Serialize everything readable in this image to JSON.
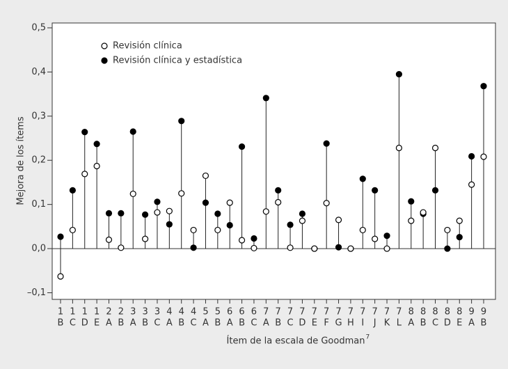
{
  "chart_data": {
    "type": "lollipop",
    "ylabel": "Mejora de los ítems",
    "xlabel": "Ítem de la escala de Goodman",
    "xlabel_superscript": "7",
    "categories": [
      [
        "1",
        "B"
      ],
      [
        "1",
        "C"
      ],
      [
        "1",
        "D"
      ],
      [
        "1",
        "E"
      ],
      [
        "2",
        "A"
      ],
      [
        "2",
        "B"
      ],
      [
        "3",
        "A"
      ],
      [
        "3",
        "B"
      ],
      [
        "3",
        "C"
      ],
      [
        "4",
        "A"
      ],
      [
        "4",
        "B"
      ],
      [
        "4",
        "C"
      ],
      [
        "5",
        "A"
      ],
      [
        "5",
        "B"
      ],
      [
        "6",
        "A"
      ],
      [
        "6",
        "B"
      ],
      [
        "6",
        "C"
      ],
      [
        "7",
        "A"
      ],
      [
        "7",
        "B"
      ],
      [
        "7",
        "C"
      ],
      [
        "7",
        "D"
      ],
      [
        "7",
        "E"
      ],
      [
        "7",
        "F"
      ],
      [
        "7",
        "G"
      ],
      [
        "7",
        "H"
      ],
      [
        "7",
        "I"
      ],
      [
        "7",
        "J"
      ],
      [
        "7",
        "K"
      ],
      [
        "7",
        "L"
      ],
      [
        "8",
        "A"
      ],
      [
        "8",
        "B"
      ],
      [
        "8",
        "C"
      ],
      [
        "8",
        "D"
      ],
      [
        "8",
        "E"
      ],
      [
        "9",
        "A"
      ],
      [
        "9",
        "B"
      ]
    ],
    "series": [
      {
        "name": "Revisión clínica",
        "color": "#ffffff",
        "values": [
          -0.063,
          0.042,
          0.169,
          0.187,
          0.02,
          0.002,
          0.124,
          0.022,
          0.082,
          0.085,
          0.125,
          0.042,
          0.165,
          0.042,
          0.104,
          0.019,
          0.001,
          0.084,
          0.105,
          0.002,
          0.063,
          0.0,
          0.103,
          0.065,
          0.0,
          0.042,
          0.022,
          0.0,
          0.228,
          0.063,
          0.082,
          0.228,
          0.042,
          0.063,
          0.145,
          0.208
        ]
      },
      {
        "name": "Revisión clínica y estadística",
        "color": "#000000",
        "values": [
          0.027,
          0.132,
          0.264,
          0.237,
          0.08,
          0.08,
          0.265,
          0.077,
          0.106,
          0.055,
          0.289,
          0.002,
          0.104,
          0.079,
          0.053,
          0.231,
          0.023,
          0.341,
          0.132,
          0.054,
          0.079,
          0.0,
          0.238,
          0.003,
          0.0,
          0.158,
          0.132,
          0.029,
          0.395,
          0.107,
          0.079,
          0.132,
          0.0,
          0.026,
          0.209,
          0.368
        ]
      }
    ],
    "ylim": [
      -0.115,
      0.511
    ],
    "yticks": [
      {
        "value": -0.1,
        "label": "–0,1"
      },
      {
        "value": 0.0,
        "label": "0,0"
      },
      {
        "value": 0.1,
        "label": "0,1"
      },
      {
        "value": 0.2,
        "label": "0,2"
      },
      {
        "value": 0.3,
        "label": "0,3"
      },
      {
        "value": 0.4,
        "label": "0,4"
      },
      {
        "value": 0.5,
        "label": "0,5"
      }
    ],
    "legend": "upper left",
    "grid": false
  }
}
